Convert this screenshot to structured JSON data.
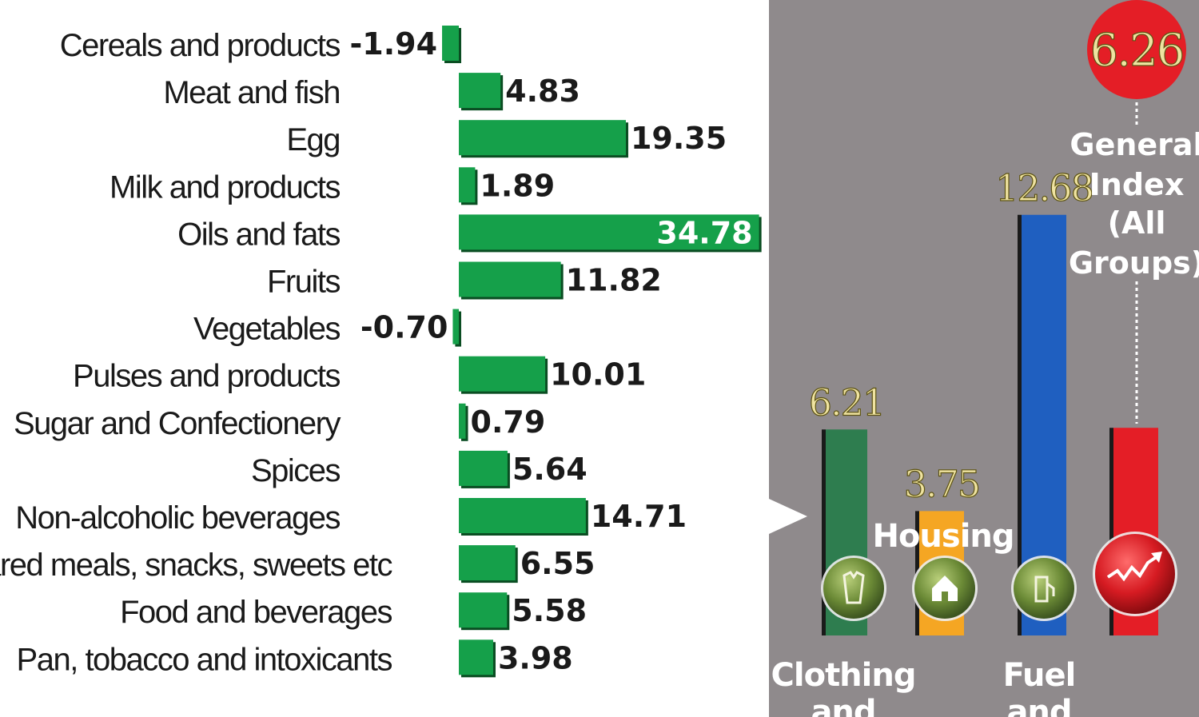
{
  "chart_data": [
    {
      "type": "bar",
      "orientation": "horizontal",
      "categories": [
        "Cereals and products",
        "Meat and fish",
        "Egg",
        "Milk and products",
        "Oils and fats",
        "Fruits",
        "Vegetables",
        "Pulses and products",
        "Sugar and Confectionery",
        "Spices",
        "Non-alcoholic beverages",
        "Prepared meals, snacks, sweets etc",
        "Food and beverages",
        "Pan, tobacco and intoxicants"
      ],
      "values": [
        -1.94,
        4.83,
        19.35,
        1.89,
        34.78,
        11.82,
        -0.7,
        10.01,
        0.79,
        5.64,
        14.71,
        6.55,
        5.58,
        3.98
      ],
      "value_labels": [
        "-1.94",
        "4.83",
        "19.35",
        "1.89",
        "34.78",
        "11.82",
        "-0.70",
        "10.01",
        "0.79",
        "5.64",
        "14.71",
        "6.55",
        "5.58",
        "3.98"
      ],
      "bar_color": "#15a04a",
      "title": "",
      "xlabel": "",
      "ylabel": ""
    },
    {
      "type": "bar",
      "orientation": "vertical",
      "categories": [
        "Clothing and",
        "Housing",
        "Fuel and",
        "General Index (All Groups)"
      ],
      "values": [
        6.21,
        3.75,
        12.68,
        6.26
      ],
      "value_labels": [
        "6.21",
        "3.75",
        "12.68",
        "6.26"
      ],
      "colors": [
        "#2e7d4f",
        "#f5a623",
        "#1f5fc0",
        "#e41e26"
      ],
      "icons": [
        "shirt-icon",
        "house-icon",
        "fuel-pump-icon",
        "trend-arrow-icon"
      ]
    }
  ],
  "labels": {
    "clothing_line1": "Clothing",
    "clothing_line2": "and",
    "housing": "Housing",
    "fuel_line1": "Fuel",
    "fuel_line2": "and",
    "general_index_lines": [
      "General",
      "Index",
      "(All",
      "Groups)"
    ],
    "general_index_badge": "6.26"
  },
  "colors": {
    "panel_gray": "#8f8a8c",
    "gold_text": "#efe3a0"
  }
}
